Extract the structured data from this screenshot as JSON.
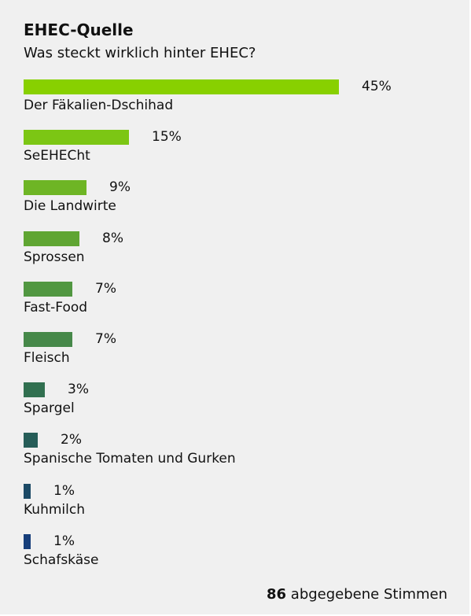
{
  "poll": {
    "title": "EHEC-Quelle",
    "question": "Was steckt wirklich hinter EHEC?",
    "votes_count": "86",
    "votes_label": "abgegebene Stimmen"
  },
  "chart_data": {
    "type": "bar",
    "orientation": "horizontal",
    "title": "EHEC-Quelle",
    "subtitle": "Was steckt wirklich hinter EHEC?",
    "categories": [
      "Der Fäkalien-Dschihad",
      "SeEHECht",
      "Die Landwirte",
      "Sprossen",
      "Fast-Food",
      "Fleisch",
      "Spargel",
      "Spanische Tomaten und Gurken",
      "Kuhmilch",
      "Schafskäse"
    ],
    "values": [
      45,
      15,
      9,
      8,
      7,
      7,
      3,
      2,
      1,
      1
    ],
    "value_labels": [
      "45%",
      "15%",
      "9%",
      "8%",
      "7%",
      "7%",
      "3%",
      "2%",
      "1%",
      "1%"
    ],
    "unit": "%",
    "colors": [
      "#88d000",
      "#7cc614",
      "#6eb525",
      "#5fa532",
      "#519741",
      "#468849",
      "#317050",
      "#265d58",
      "#1c4a66",
      "#163e7a"
    ],
    "grid": false,
    "legend": "none"
  }
}
